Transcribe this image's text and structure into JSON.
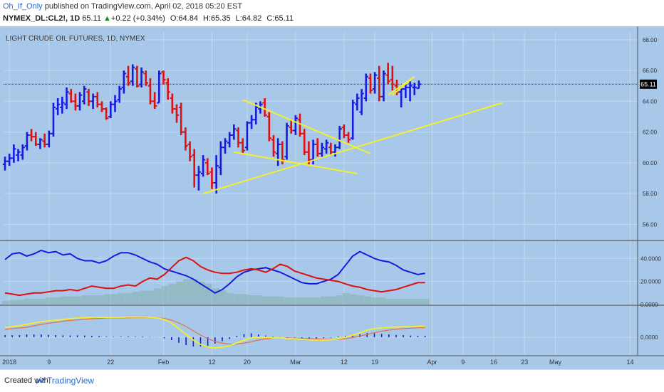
{
  "header": {
    "user": "Oh_If_Only",
    "published": "published on TradingView.com, April 02, 2018 05:20 EST",
    "symbol": "NYMEX_DL:CL2!, 1D",
    "last": "65.11",
    "change": "+0.22 (+0.34%)",
    "open": "O:64.84",
    "high": "H:65.35",
    "low": "L:64.82",
    "close": "C:65.11"
  },
  "footer": {
    "created": "Created with",
    "brand": "TradingView"
  },
  "colors": {
    "background": "#a8c8ea",
    "up_bar": "#1a1adc",
    "down_bar": "#e01010",
    "trendline": "#f0f030",
    "grid": "#c2d8ef",
    "di_plus": "#1a1adc",
    "di_minus": "#e01010",
    "signal": "#f0f030",
    "macd_line": "#e07050"
  },
  "chart_data": [
    {
      "type": "candlestick",
      "title": "LIGHT CRUDE OIL FUTURES, 1D, NYMEX",
      "last_price_label": "65.11",
      "ylim": [
        55,
        68.5
      ],
      "yticks": [
        "68.00",
        "66.00",
        "64.00",
        "62.00",
        "60.00",
        "58.00",
        "56.00"
      ],
      "xticks": [
        "2018",
        "9",
        "22",
        "Feb",
        "12",
        "20",
        "Mar",
        "12",
        "19",
        "Apr",
        "9",
        "16",
        "23",
        "May",
        "14"
      ],
      "bars": [
        {
          "o": 59.9,
          "h": 60.4,
          "l": 59.5,
          "c": 60.1
        },
        {
          "o": 60.1,
          "h": 60.6,
          "l": 59.8,
          "c": 60.3
        },
        {
          "o": 60.3,
          "h": 61.2,
          "l": 60.0,
          "c": 60.9
        },
        {
          "o": 60.5,
          "h": 60.9,
          "l": 60.1,
          "c": 60.7
        },
        {
          "o": 60.5,
          "h": 61.2,
          "l": 60.2,
          "c": 61.0
        },
        {
          "o": 61.1,
          "h": 62.0,
          "l": 60.8,
          "c": 61.8
        },
        {
          "o": 61.8,
          "h": 62.2,
          "l": 61.4,
          "c": 61.7
        },
        {
          "o": 61.7,
          "h": 62.0,
          "l": 61.1,
          "c": 61.2
        },
        {
          "o": 61.2,
          "h": 61.6,
          "l": 60.9,
          "c": 61.5
        },
        {
          "o": 61.4,
          "h": 61.9,
          "l": 61.0,
          "c": 61.2
        },
        {
          "o": 61.2,
          "h": 62.1,
          "l": 61.0,
          "c": 61.9
        },
        {
          "o": 61.9,
          "h": 63.9,
          "l": 61.7,
          "c": 63.6
        },
        {
          "o": 63.5,
          "h": 64.2,
          "l": 63.1,
          "c": 63.8
        },
        {
          "o": 63.6,
          "h": 64.3,
          "l": 63.2,
          "c": 63.9
        },
        {
          "o": 63.8,
          "h": 64.9,
          "l": 63.5,
          "c": 64.6
        },
        {
          "o": 64.5,
          "h": 64.8,
          "l": 63.9,
          "c": 64.0
        },
        {
          "o": 64.0,
          "h": 64.5,
          "l": 63.4,
          "c": 63.7
        },
        {
          "o": 63.7,
          "h": 64.6,
          "l": 63.4,
          "c": 64.4
        },
        {
          "o": 64.0,
          "h": 65.0,
          "l": 63.8,
          "c": 64.8
        },
        {
          "o": 64.6,
          "h": 64.8,
          "l": 63.7,
          "c": 64.0
        },
        {
          "o": 64.0,
          "h": 64.5,
          "l": 63.5,
          "c": 64.3
        },
        {
          "o": 64.3,
          "h": 64.6,
          "l": 63.6,
          "c": 63.8
        },
        {
          "o": 63.8,
          "h": 64.0,
          "l": 63.3,
          "c": 63.5
        },
        {
          "o": 63.5,
          "h": 63.6,
          "l": 62.8,
          "c": 62.9
        },
        {
          "o": 63.0,
          "h": 64.0,
          "l": 62.9,
          "c": 63.8
        },
        {
          "o": 63.8,
          "h": 64.4,
          "l": 63.3,
          "c": 64.0
        },
        {
          "o": 64.1,
          "h": 65.0,
          "l": 63.9,
          "c": 64.8
        },
        {
          "o": 64.9,
          "h": 66.0,
          "l": 64.5,
          "c": 65.8
        },
        {
          "o": 65.6,
          "h": 66.3,
          "l": 65.0,
          "c": 65.2
        },
        {
          "o": 65.3,
          "h": 66.4,
          "l": 65.0,
          "c": 66.2
        },
        {
          "o": 66.1,
          "h": 66.3,
          "l": 64.9,
          "c": 65.0
        },
        {
          "o": 65.1,
          "h": 66.2,
          "l": 64.9,
          "c": 65.9
        },
        {
          "o": 65.8,
          "h": 66.0,
          "l": 65.0,
          "c": 65.2
        },
        {
          "o": 65.0,
          "h": 65.5,
          "l": 63.8,
          "c": 64.0
        },
        {
          "o": 64.0,
          "h": 64.6,
          "l": 63.5,
          "c": 63.7
        },
        {
          "o": 63.9,
          "h": 66.0,
          "l": 63.9,
          "c": 65.8
        },
        {
          "o": 65.9,
          "h": 66.0,
          "l": 65.1,
          "c": 65.4
        },
        {
          "o": 65.2,
          "h": 65.5,
          "l": 64.1,
          "c": 64.6
        },
        {
          "o": 64.2,
          "h": 64.5,
          "l": 63.2,
          "c": 63.5
        },
        {
          "o": 63.5,
          "h": 63.8,
          "l": 62.6,
          "c": 63.1
        },
        {
          "o": 63.6,
          "h": 63.9,
          "l": 61.8,
          "c": 62.0
        },
        {
          "o": 62.0,
          "h": 62.3,
          "l": 60.8,
          "c": 61.1
        },
        {
          "o": 61.2,
          "h": 61.4,
          "l": 60.1,
          "c": 60.4
        },
        {
          "o": 60.5,
          "h": 60.9,
          "l": 58.4,
          "c": 59.2
        },
        {
          "o": 59.2,
          "h": 59.8,
          "l": 58.2,
          "c": 59.4
        },
        {
          "o": 59.3,
          "h": 60.5,
          "l": 59.1,
          "c": 60.2
        },
        {
          "o": 60.0,
          "h": 60.3,
          "l": 59.2,
          "c": 59.3
        },
        {
          "o": 59.4,
          "h": 59.7,
          "l": 58.3,
          "c": 58.7
        },
        {
          "o": 58.7,
          "h": 60.5,
          "l": 58.0,
          "c": 59.8
        },
        {
          "o": 59.7,
          "h": 61.4,
          "l": 59.2,
          "c": 61.0
        },
        {
          "o": 61.0,
          "h": 61.6,
          "l": 60.6,
          "c": 61.4
        },
        {
          "o": 61.3,
          "h": 62.0,
          "l": 61.0,
          "c": 61.8
        },
        {
          "o": 61.8,
          "h": 62.5,
          "l": 61.5,
          "c": 62.2
        },
        {
          "o": 62.1,
          "h": 62.3,
          "l": 61.0,
          "c": 61.3
        },
        {
          "o": 61.3,
          "h": 61.6,
          "l": 60.6,
          "c": 60.8
        },
        {
          "o": 61.0,
          "h": 62.7,
          "l": 60.8,
          "c": 62.6
        },
        {
          "o": 62.6,
          "h": 63.1,
          "l": 62.2,
          "c": 62.8
        },
        {
          "o": 62.8,
          "h": 63.9,
          "l": 62.5,
          "c": 63.6
        },
        {
          "o": 63.5,
          "h": 64.0,
          "l": 63.2,
          "c": 63.8
        },
        {
          "o": 63.9,
          "h": 64.2,
          "l": 63.0,
          "c": 63.1
        },
        {
          "o": 63.0,
          "h": 63.3,
          "l": 61.4,
          "c": 61.6
        },
        {
          "o": 61.5,
          "h": 61.8,
          "l": 60.4,
          "c": 60.7
        },
        {
          "o": 60.6,
          "h": 61.6,
          "l": 59.8,
          "c": 61.2
        },
        {
          "o": 61.2,
          "h": 61.4,
          "l": 59.9,
          "c": 60.2
        },
        {
          "o": 60.4,
          "h": 62.6,
          "l": 60.2,
          "c": 62.4
        },
        {
          "o": 62.3,
          "h": 62.8,
          "l": 61.9,
          "c": 62.1
        },
        {
          "o": 62.1,
          "h": 63.1,
          "l": 61.8,
          "c": 62.9
        },
        {
          "o": 62.8,
          "h": 63.2,
          "l": 61.7,
          "c": 61.9
        },
        {
          "o": 61.9,
          "h": 62.2,
          "l": 60.5,
          "c": 60.7
        },
        {
          "o": 60.7,
          "h": 61.4,
          "l": 59.9,
          "c": 60.2
        },
        {
          "o": 60.2,
          "h": 61.5,
          "l": 59.9,
          "c": 61.2
        },
        {
          "o": 61.2,
          "h": 61.6,
          "l": 60.4,
          "c": 60.6
        },
        {
          "o": 60.6,
          "h": 61.3,
          "l": 60.3,
          "c": 61.0
        },
        {
          "o": 60.9,
          "h": 61.5,
          "l": 60.6,
          "c": 61.3
        },
        {
          "o": 61.0,
          "h": 61.3,
          "l": 60.5,
          "c": 60.7
        },
        {
          "o": 60.7,
          "h": 61.2,
          "l": 60.4,
          "c": 61.0
        },
        {
          "o": 61.0,
          "h": 62.4,
          "l": 60.9,
          "c": 62.2
        },
        {
          "o": 62.3,
          "h": 62.5,
          "l": 61.6,
          "c": 61.8
        },
        {
          "o": 61.8,
          "h": 62.0,
          "l": 61.3,
          "c": 61.5
        },
        {
          "o": 61.6,
          "h": 64.1,
          "l": 61.5,
          "c": 63.9
        },
        {
          "o": 63.8,
          "h": 64.5,
          "l": 63.4,
          "c": 64.2
        },
        {
          "o": 63.3,
          "h": 64.8,
          "l": 63.1,
          "c": 64.5
        },
        {
          "o": 64.2,
          "h": 65.8,
          "l": 64.0,
          "c": 65.6
        },
        {
          "o": 65.5,
          "h": 65.8,
          "l": 64.5,
          "c": 64.7
        },
        {
          "o": 64.8,
          "h": 65.9,
          "l": 64.5,
          "c": 65.7
        },
        {
          "o": 65.5,
          "h": 66.3,
          "l": 64.0,
          "c": 64.3
        },
        {
          "o": 64.3,
          "h": 66.0,
          "l": 64.0,
          "c": 65.8
        },
        {
          "o": 65.7,
          "h": 66.5,
          "l": 65.1,
          "c": 65.3
        },
        {
          "o": 65.4,
          "h": 66.3,
          "l": 64.7,
          "c": 65.1
        },
        {
          "o": 65.0,
          "h": 65.4,
          "l": 64.4,
          "c": 64.6
        },
        {
          "o": 64.6,
          "h": 65.0,
          "l": 63.6,
          "c": 64.8
        },
        {
          "o": 64.8,
          "h": 65.2,
          "l": 64.2,
          "c": 64.9
        },
        {
          "o": 64.9,
          "h": 65.3,
          "l": 64.0,
          "c": 65.0
        },
        {
          "o": 64.9,
          "h": 65.2,
          "l": 64.4,
          "c": 64.9
        },
        {
          "o": 64.84,
          "h": 65.35,
          "l": 64.82,
          "c": 65.11
        }
      ],
      "trendlines": [
        {
          "x1": 45,
          "y1": 58.0,
          "x2": 113,
          "y2": 63.9
        },
        {
          "x1": 54,
          "y1": 64.1,
          "x2": 83,
          "y2": 60.6
        },
        {
          "x1": 52,
          "y1": 60.7,
          "x2": 80,
          "y2": 59.3
        },
        {
          "x1": 87,
          "y1": 64.4,
          "x2": 93,
          "y2": 65.6
        },
        {
          "x1": 88,
          "y1": 64.4,
          "x2": 93,
          "y2": 65.6
        }
      ]
    },
    {
      "type": "line",
      "title": "DMI",
      "ylim": [
        0,
        55
      ],
      "yticks": [
        "40.0000",
        "20.0000",
        "0.0000"
      ],
      "series": [
        {
          "values": [
            39,
            44,
            45,
            42,
            44,
            47,
            45,
            46,
            43,
            44,
            40,
            38,
            38,
            36,
            38,
            42,
            45,
            45,
            43,
            40,
            37,
            35,
            31,
            29,
            27,
            25,
            22,
            18,
            14,
            10,
            13,
            18,
            24,
            28,
            30,
            31,
            32,
            30,
            28,
            25,
            22,
            19,
            18,
            18,
            20,
            22,
            26,
            34,
            42,
            46,
            43,
            40,
            38,
            37,
            34,
            30,
            28,
            26,
            27
          ]
        },
        {
          "values": [
            10,
            9,
            8,
            9,
            10,
            10,
            11,
            12,
            12,
            13,
            12,
            14,
            16,
            15,
            14,
            14,
            16,
            17,
            16,
            20,
            23,
            22,
            26,
            32,
            38,
            41,
            38,
            33,
            30,
            28,
            27,
            27,
            28,
            30,
            31,
            30,
            28,
            31,
            35,
            33,
            29,
            27,
            25,
            23,
            22,
            21,
            20,
            18,
            16,
            15,
            13,
            12,
            11,
            12,
            13,
            15,
            17,
            19,
            19
          ]
        }
      ],
      "histogram": [
        3,
        4,
        4,
        5,
        5,
        5,
        6,
        6,
        7,
        7,
        7,
        8,
        8,
        8,
        9,
        9,
        10,
        10,
        11,
        12,
        12,
        14,
        16,
        18,
        20,
        22,
        22,
        20,
        18,
        14,
        12,
        10,
        9,
        9,
        8,
        8,
        7,
        7,
        7,
        6,
        6,
        6,
        6,
        6,
        7,
        7,
        8,
        10,
        9,
        8,
        7,
        6,
        6,
        5,
        5,
        5,
        5,
        5,
        5
      ]
    },
    {
      "type": "line",
      "title": "MACD",
      "ylim": [
        -1.3,
        2.2
      ],
      "yticks": [
        "0.0000"
      ],
      "series": [
        {
          "values": [
            0.7,
            0.75,
            0.8,
            0.9,
            1.0,
            1.1,
            1.15,
            1.2,
            1.25,
            1.3,
            1.35,
            1.38,
            1.4,
            1.4,
            1.38,
            1.38,
            1.4,
            1.42,
            1.42,
            1.42,
            1.4,
            1.35,
            1.25,
            1.0,
            0.6,
            0.2,
            -0.2,
            -0.5,
            -0.7,
            -0.75,
            -0.7,
            -0.6,
            -0.4,
            -0.2,
            -0.05,
            0.0,
            0.0,
            -0.05,
            -0.05,
            -0.1,
            -0.1,
            -0.15,
            -0.18,
            -0.2,
            -0.2,
            -0.18,
            -0.1,
            0.0,
            0.15,
            0.3,
            0.5,
            0.6,
            0.65,
            0.7,
            0.72,
            0.75,
            0.75,
            0.75,
            0.78
          ]
        },
        {
          "values": [
            0.55,
            0.6,
            0.65,
            0.7,
            0.8,
            0.9,
            0.98,
            1.05,
            1.12,
            1.18,
            1.22,
            1.26,
            1.3,
            1.32,
            1.34,
            1.35,
            1.36,
            1.37,
            1.38,
            1.38,
            1.38,
            1.36,
            1.32,
            1.2,
            1.0,
            0.75,
            0.45,
            0.15,
            -0.1,
            -0.3,
            -0.42,
            -0.48,
            -0.48,
            -0.42,
            -0.32,
            -0.2,
            -0.12,
            -0.08,
            -0.06,
            -0.05,
            -0.06,
            -0.08,
            -0.1,
            -0.12,
            -0.14,
            -0.15,
            -0.14,
            -0.1,
            -0.02,
            0.08,
            0.2,
            0.32,
            0.42,
            0.5,
            0.56,
            0.6,
            0.63,
            0.66,
            0.68
          ]
        }
      ],
      "histogram": [
        0.15,
        0.15,
        0.15,
        0.2,
        0.2,
        0.2,
        0.17,
        0.15,
        0.13,
        0.12,
        0.13,
        0.12,
        0.1,
        0.08,
        0.04,
        0.03,
        0.04,
        0.05,
        0.04,
        0.04,
        0.02,
        -0.01,
        -0.07,
        -0.2,
        -0.4,
        -0.55,
        -0.65,
        -0.65,
        -0.6,
        -0.45,
        -0.28,
        -0.12,
        0.08,
        0.22,
        0.27,
        0.2,
        0.12,
        0.03,
        0.01,
        -0.05,
        -0.04,
        -0.07,
        -0.08,
        -0.08,
        -0.06,
        -0.03,
        0.04,
        0.1,
        0.17,
        0.22,
        0.3,
        0.28,
        0.23,
        0.2,
        0.16,
        0.15,
        0.12,
        0.09,
        0.1
      ]
    }
  ]
}
